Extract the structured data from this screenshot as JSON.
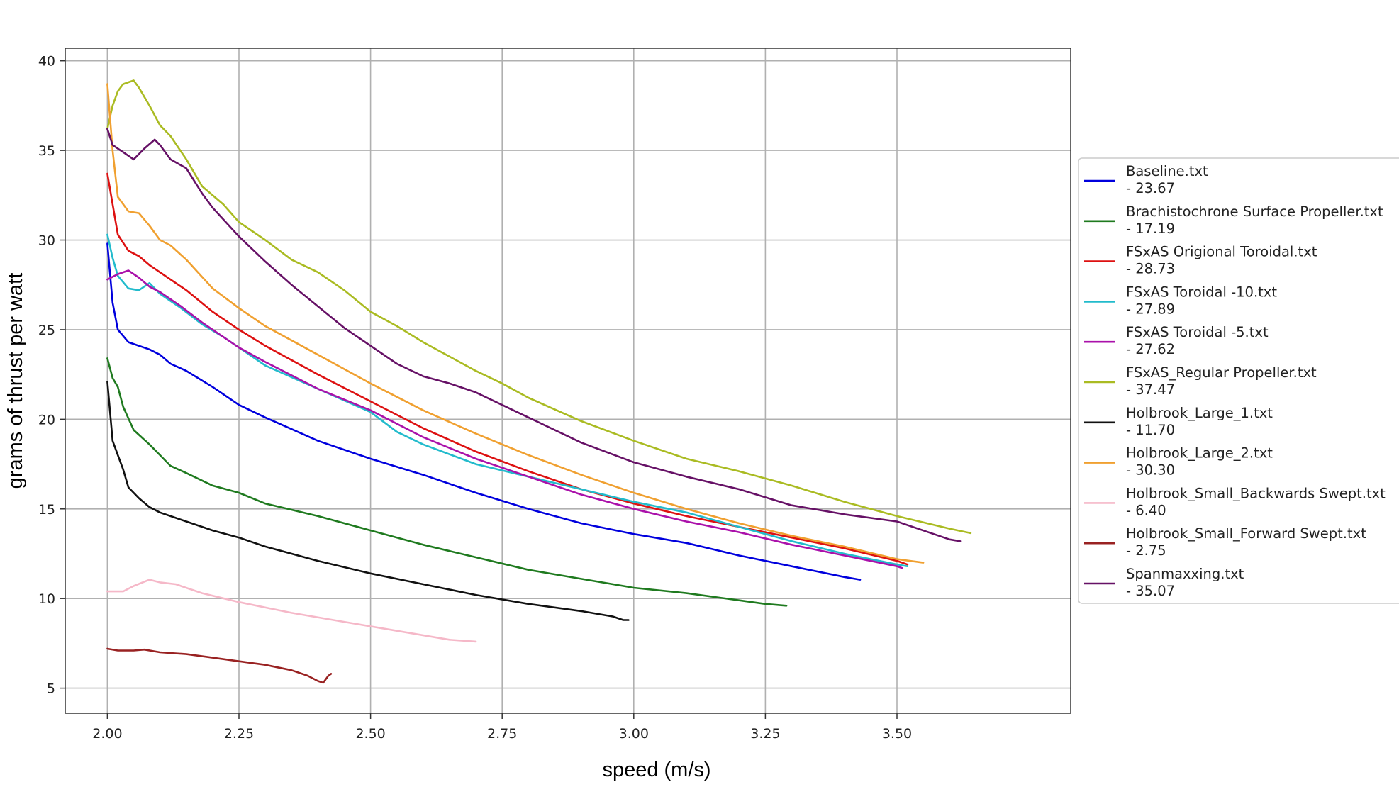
{
  "chart_data": {
    "type": "line",
    "title": "",
    "xlabel": "speed (m/s)",
    "ylabel": "grams of thrust per watt",
    "xlim": [
      1.92,
      3.83
    ],
    "ylim": [
      3.6,
      40.7
    ],
    "xticks": [
      "2.00",
      "2.25",
      "2.50",
      "2.75",
      "3.00",
      "3.25",
      "3.50"
    ],
    "yticks": [
      "5",
      "10",
      "15",
      "20",
      "25",
      "30",
      "35",
      "40"
    ],
    "grid": true,
    "legend_position": "right",
    "series": [
      {
        "name": "Baseline.txt",
        "value_label": "- 23.67",
        "color": "#0000dd",
        "points": [
          [
            2.0,
            29.8
          ],
          [
            2.01,
            26.5
          ],
          [
            2.02,
            25.0
          ],
          [
            2.04,
            24.3
          ],
          [
            2.08,
            23.9
          ],
          [
            2.1,
            23.6
          ],
          [
            2.12,
            23.1
          ],
          [
            2.15,
            22.7
          ],
          [
            2.2,
            21.8
          ],
          [
            2.25,
            20.8
          ],
          [
            2.3,
            20.1
          ],
          [
            2.4,
            18.8
          ],
          [
            2.5,
            17.8
          ],
          [
            2.6,
            16.9
          ],
          [
            2.7,
            15.9
          ],
          [
            2.8,
            15.0
          ],
          [
            2.9,
            14.2
          ],
          [
            3.0,
            13.6
          ],
          [
            3.1,
            13.1
          ],
          [
            3.2,
            12.4
          ],
          [
            3.3,
            11.8
          ],
          [
            3.4,
            11.2
          ],
          [
            3.43,
            11.05
          ]
        ]
      },
      {
        "name": "Brachistochrone Surface Propeller.txt",
        "value_label": "- 17.19",
        "color": "#1f7a1f",
        "points": [
          [
            2.0,
            23.4
          ],
          [
            2.01,
            22.3
          ],
          [
            2.02,
            21.8
          ],
          [
            2.03,
            20.7
          ],
          [
            2.05,
            19.4
          ],
          [
            2.08,
            18.6
          ],
          [
            2.1,
            18.0
          ],
          [
            2.12,
            17.4
          ],
          [
            2.15,
            17.0
          ],
          [
            2.2,
            16.3
          ],
          [
            2.25,
            15.9
          ],
          [
            2.3,
            15.3
          ],
          [
            2.4,
            14.6
          ],
          [
            2.5,
            13.8
          ],
          [
            2.6,
            13.0
          ],
          [
            2.7,
            12.3
          ],
          [
            2.8,
            11.6
          ],
          [
            2.9,
            11.1
          ],
          [
            3.0,
            10.6
          ],
          [
            3.1,
            10.3
          ],
          [
            3.2,
            9.9
          ],
          [
            3.25,
            9.7
          ],
          [
            3.29,
            9.6
          ]
        ]
      },
      {
        "name": "FSxAS Origional Toroidal.txt",
        "value_label": "- 28.73",
        "color": "#dd1111",
        "points": [
          [
            2.0,
            33.7
          ],
          [
            2.01,
            32.0
          ],
          [
            2.02,
            30.3
          ],
          [
            2.04,
            29.4
          ],
          [
            2.06,
            29.1
          ],
          [
            2.08,
            28.6
          ],
          [
            2.1,
            28.2
          ],
          [
            2.12,
            27.8
          ],
          [
            2.15,
            27.2
          ],
          [
            2.2,
            26.0
          ],
          [
            2.25,
            25.0
          ],
          [
            2.3,
            24.1
          ],
          [
            2.4,
            22.5
          ],
          [
            2.5,
            21.0
          ],
          [
            2.6,
            19.5
          ],
          [
            2.7,
            18.2
          ],
          [
            2.8,
            17.1
          ],
          [
            2.9,
            16.1
          ],
          [
            3.0,
            15.3
          ],
          [
            3.1,
            14.6
          ],
          [
            3.2,
            14.0
          ],
          [
            3.3,
            13.4
          ],
          [
            3.4,
            12.8
          ],
          [
            3.5,
            12.1
          ],
          [
            3.52,
            11.9
          ]
        ]
      },
      {
        "name": "FSxAS Toroidal -10.txt",
        "value_label": "- 27.89",
        "color": "#22bbcc",
        "points": [
          [
            2.0,
            30.3
          ],
          [
            2.01,
            29.0
          ],
          [
            2.02,
            28.0
          ],
          [
            2.04,
            27.3
          ],
          [
            2.06,
            27.2
          ],
          [
            2.08,
            27.6
          ],
          [
            2.1,
            27.0
          ],
          [
            2.14,
            26.2
          ],
          [
            2.18,
            25.3
          ],
          [
            2.22,
            24.6
          ],
          [
            2.25,
            24.0
          ],
          [
            2.3,
            23.0
          ],
          [
            2.4,
            21.7
          ],
          [
            2.5,
            20.4
          ],
          [
            2.55,
            19.3
          ],
          [
            2.6,
            18.6
          ],
          [
            2.7,
            17.5
          ],
          [
            2.8,
            16.8
          ],
          [
            2.9,
            16.1
          ],
          [
            3.0,
            15.4
          ],
          [
            3.1,
            14.8
          ],
          [
            3.2,
            14.0
          ],
          [
            3.3,
            13.2
          ],
          [
            3.4,
            12.5
          ],
          [
            3.5,
            11.9
          ],
          [
            3.52,
            11.8
          ]
        ]
      },
      {
        "name": "FSxAS Toroidal -5.txt",
        "value_label": "- 27.62",
        "color": "#aa11aa",
        "points": [
          [
            2.0,
            27.8
          ],
          [
            2.02,
            28.1
          ],
          [
            2.04,
            28.3
          ],
          [
            2.06,
            27.9
          ],
          [
            2.08,
            27.4
          ],
          [
            2.1,
            27.1
          ],
          [
            2.14,
            26.3
          ],
          [
            2.18,
            25.4
          ],
          [
            2.22,
            24.6
          ],
          [
            2.25,
            24.0
          ],
          [
            2.3,
            23.2
          ],
          [
            2.4,
            21.7
          ],
          [
            2.5,
            20.5
          ],
          [
            2.6,
            19.0
          ],
          [
            2.7,
            17.8
          ],
          [
            2.8,
            16.8
          ],
          [
            2.9,
            15.8
          ],
          [
            3.0,
            15.0
          ],
          [
            3.1,
            14.3
          ],
          [
            3.2,
            13.7
          ],
          [
            3.3,
            13.0
          ],
          [
            3.4,
            12.4
          ],
          [
            3.5,
            11.8
          ],
          [
            3.51,
            11.7
          ]
        ]
      },
      {
        "name": "FSxAS_Regular Propeller.txt",
        "value_label": "- 37.47",
        "color": "#aabb22",
        "points": [
          [
            2.0,
            36.2
          ],
          [
            2.01,
            37.5
          ],
          [
            2.02,
            38.3
          ],
          [
            2.03,
            38.7
          ],
          [
            2.04,
            38.8
          ],
          [
            2.05,
            38.9
          ],
          [
            2.06,
            38.5
          ],
          [
            2.08,
            37.5
          ],
          [
            2.1,
            36.4
          ],
          [
            2.12,
            35.8
          ],
          [
            2.15,
            34.5
          ],
          [
            2.18,
            33.0
          ],
          [
            2.22,
            32.0
          ],
          [
            2.25,
            31.0
          ],
          [
            2.3,
            30.0
          ],
          [
            2.35,
            28.9
          ],
          [
            2.4,
            28.2
          ],
          [
            2.45,
            27.2
          ],
          [
            2.5,
            26.0
          ],
          [
            2.55,
            25.2
          ],
          [
            2.6,
            24.3
          ],
          [
            2.65,
            23.5
          ],
          [
            2.7,
            22.7
          ],
          [
            2.75,
            22.0
          ],
          [
            2.8,
            21.2
          ],
          [
            2.9,
            19.9
          ],
          [
            3.0,
            18.8
          ],
          [
            3.1,
            17.8
          ],
          [
            3.2,
            17.1
          ],
          [
            3.3,
            16.3
          ],
          [
            3.4,
            15.4
          ],
          [
            3.5,
            14.6
          ],
          [
            3.6,
            13.9
          ],
          [
            3.64,
            13.65
          ]
        ]
      },
      {
        "name": "Holbrook_Large_1.txt",
        "value_label": "- 11.70",
        "color": "#111111",
        "points": [
          [
            2.0,
            22.1
          ],
          [
            2.01,
            18.8
          ],
          [
            2.02,
            18.0
          ],
          [
            2.03,
            17.2
          ],
          [
            2.04,
            16.2
          ],
          [
            2.06,
            15.6
          ],
          [
            2.08,
            15.1
          ],
          [
            2.1,
            14.8
          ],
          [
            2.12,
            14.6
          ],
          [
            2.15,
            14.3
          ],
          [
            2.2,
            13.8
          ],
          [
            2.25,
            13.4
          ],
          [
            2.3,
            12.9
          ],
          [
            2.4,
            12.1
          ],
          [
            2.5,
            11.4
          ],
          [
            2.6,
            10.8
          ],
          [
            2.7,
            10.2
          ],
          [
            2.8,
            9.7
          ],
          [
            2.9,
            9.3
          ],
          [
            2.96,
            9.0
          ],
          [
            2.98,
            8.8
          ],
          [
            2.99,
            8.8
          ]
        ]
      },
      {
        "name": "Holbrook_Large_2.txt",
        "value_label": "- 30.30",
        "color": "#f0a030",
        "points": [
          [
            2.0,
            38.7
          ],
          [
            2.01,
            35.0
          ],
          [
            2.02,
            32.4
          ],
          [
            2.04,
            31.6
          ],
          [
            2.06,
            31.5
          ],
          [
            2.08,
            30.8
          ],
          [
            2.1,
            30.0
          ],
          [
            2.12,
            29.7
          ],
          [
            2.15,
            28.9
          ],
          [
            2.2,
            27.3
          ],
          [
            2.25,
            26.2
          ],
          [
            2.3,
            25.2
          ],
          [
            2.4,
            23.6
          ],
          [
            2.5,
            22.0
          ],
          [
            2.6,
            20.5
          ],
          [
            2.7,
            19.2
          ],
          [
            2.8,
            18.0
          ],
          [
            2.9,
            16.9
          ],
          [
            3.0,
            15.9
          ],
          [
            3.1,
            15.0
          ],
          [
            3.2,
            14.2
          ],
          [
            3.3,
            13.5
          ],
          [
            3.4,
            12.9
          ],
          [
            3.5,
            12.2
          ],
          [
            3.55,
            12.0
          ]
        ]
      },
      {
        "name": "Holbrook_Small_Backwards Swept.txt",
        "value_label": "- 6.40",
        "color": "#f5b8c8",
        "points": [
          [
            2.0,
            10.4
          ],
          [
            2.03,
            10.4
          ],
          [
            2.05,
            10.7
          ],
          [
            2.08,
            11.05
          ],
          [
            2.1,
            10.9
          ],
          [
            2.13,
            10.8
          ],
          [
            2.18,
            10.3
          ],
          [
            2.25,
            9.8
          ],
          [
            2.35,
            9.2
          ],
          [
            2.45,
            8.7
          ],
          [
            2.55,
            8.2
          ],
          [
            2.65,
            7.7
          ],
          [
            2.7,
            7.6
          ]
        ]
      },
      {
        "name": "Holbrook_Small_Forward Swept.txt",
        "value_label": "- 2.75",
        "color": "#992222",
        "points": [
          [
            2.0,
            7.2
          ],
          [
            2.02,
            7.1
          ],
          [
            2.05,
            7.1
          ],
          [
            2.07,
            7.15
          ],
          [
            2.1,
            7.0
          ],
          [
            2.15,
            6.9
          ],
          [
            2.2,
            6.7
          ],
          [
            2.25,
            6.5
          ],
          [
            2.3,
            6.3
          ],
          [
            2.35,
            6.0
          ],
          [
            2.38,
            5.7
          ],
          [
            2.4,
            5.4
          ],
          [
            2.41,
            5.3
          ],
          [
            2.42,
            5.7
          ],
          [
            2.425,
            5.8
          ]
        ]
      },
      {
        "name": "Spanmaxxing.txt",
        "value_label": "- 35.07",
        "color": "#661166",
        "points": [
          [
            2.0,
            36.2
          ],
          [
            2.01,
            35.3
          ],
          [
            2.02,
            35.1
          ],
          [
            2.03,
            34.9
          ],
          [
            2.05,
            34.5
          ],
          [
            2.07,
            35.1
          ],
          [
            2.09,
            35.6
          ],
          [
            2.1,
            35.3
          ],
          [
            2.12,
            34.5
          ],
          [
            2.15,
            34.0
          ],
          [
            2.18,
            32.6
          ],
          [
            2.2,
            31.8
          ],
          [
            2.25,
            30.2
          ],
          [
            2.3,
            28.8
          ],
          [
            2.35,
            27.5
          ],
          [
            2.4,
            26.3
          ],
          [
            2.45,
            25.1
          ],
          [
            2.5,
            24.1
          ],
          [
            2.55,
            23.1
          ],
          [
            2.6,
            22.4
          ],
          [
            2.65,
            22.0
          ],
          [
            2.7,
            21.5
          ],
          [
            2.8,
            20.1
          ],
          [
            2.9,
            18.7
          ],
          [
            3.0,
            17.6
          ],
          [
            3.1,
            16.8
          ],
          [
            3.2,
            16.1
          ],
          [
            3.3,
            15.2
          ],
          [
            3.4,
            14.7
          ],
          [
            3.5,
            14.3
          ],
          [
            3.6,
            13.3
          ],
          [
            3.62,
            13.2
          ]
        ]
      }
    ]
  }
}
